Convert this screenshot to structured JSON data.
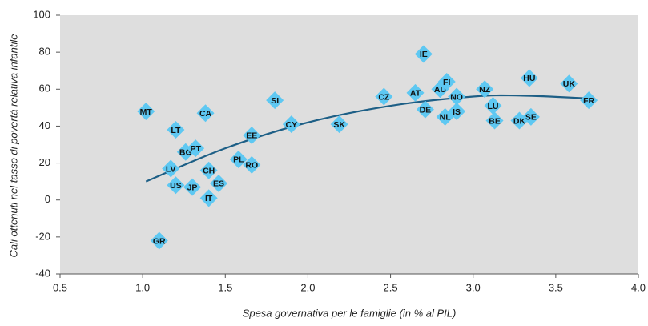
{
  "chart_data": {
    "type": "scatter",
    "xlabel": "Spesa governativa per le famiglie (in % al PIL)",
    "ylabel": "Cali ottenuti nel tasso di povertà relativa infantile",
    "xlim": [
      0.5,
      4.0
    ],
    "ylim": [
      -40,
      100
    ],
    "xticks": [
      0.5,
      {
        "value": 1,
        "label": "1.0"
      },
      1.5,
      {
        "value": 2,
        "label": "2.0"
      },
      2.5,
      {
        "value": 3,
        "label": "3.0"
      },
      3.5,
      {
        "value": 4,
        "label": "4.0"
      }
    ],
    "yticks": [
      -40,
      -20,
      0,
      20,
      40,
      60,
      80,
      100
    ],
    "color": "#5ec8f2",
    "trend_color": "#1d5f86",
    "points": [
      {
        "label": "MT",
        "x": 1.02,
        "y": 48
      },
      {
        "label": "GR",
        "x": 1.1,
        "y": -22
      },
      {
        "label": "LT",
        "x": 1.2,
        "y": 38
      },
      {
        "label": "LV",
        "x": 1.17,
        "y": 17
      },
      {
        "label": "US",
        "x": 1.2,
        "y": 8
      },
      {
        "label": "BG",
        "x": 1.26,
        "y": 26
      },
      {
        "label": "PT",
        "x": 1.32,
        "y": 28
      },
      {
        "label": "CA",
        "x": 1.38,
        "y": 47
      },
      {
        "label": "CH",
        "x": 1.4,
        "y": 16
      },
      {
        "label": "JP",
        "x": 1.3,
        "y": 7
      },
      {
        "label": "IT",
        "x": 1.4,
        "y": 1
      },
      {
        "label": "ES",
        "x": 1.46,
        "y": 9
      },
      {
        "label": "EE",
        "x": 1.66,
        "y": 35
      },
      {
        "label": "PL",
        "x": 1.58,
        "y": 22
      },
      {
        "label": "RO",
        "x": 1.66,
        "y": 19
      },
      {
        "label": "SI",
        "x": 1.8,
        "y": 54
      },
      {
        "label": "CY",
        "x": 1.9,
        "y": 41
      },
      {
        "label": "SK",
        "x": 2.19,
        "y": 41
      },
      {
        "label": "CZ",
        "x": 2.46,
        "y": 56
      },
      {
        "label": "AT",
        "x": 2.65,
        "y": 58
      },
      {
        "label": "IE",
        "x": 2.7,
        "y": 79
      },
      {
        "label": "DE",
        "x": 2.71,
        "y": 49
      },
      {
        "label": "AU",
        "x": 2.8,
        "y": 60
      },
      {
        "label": "FI",
        "x": 2.84,
        "y": 64
      },
      {
        "label": "NL",
        "x": 2.83,
        "y": 45
      },
      {
        "label": "NO",
        "x": 2.9,
        "y": 56
      },
      {
        "label": "IS",
        "x": 2.9,
        "y": 48
      },
      {
        "label": "NZ",
        "x": 3.07,
        "y": 60
      },
      {
        "label": "LU",
        "x": 3.12,
        "y": 51
      },
      {
        "label": "BE",
        "x": 3.13,
        "y": 43
      },
      {
        "label": "DK",
        "x": 3.28,
        "y": 43
      },
      {
        "label": "SE",
        "x": 3.35,
        "y": 45
      },
      {
        "label": "HU",
        "x": 3.34,
        "y": 66
      },
      {
        "label": "UK",
        "x": 3.58,
        "y": 63
      },
      {
        "label": "FR",
        "x": 3.7,
        "y": 54
      }
    ],
    "trend": {
      "x": [
        1.02,
        1.5,
        2.0,
        2.5,
        3.0,
        3.3,
        3.7
      ],
      "y": [
        10,
        28,
        42,
        51,
        56,
        56.5,
        55
      ]
    }
  }
}
